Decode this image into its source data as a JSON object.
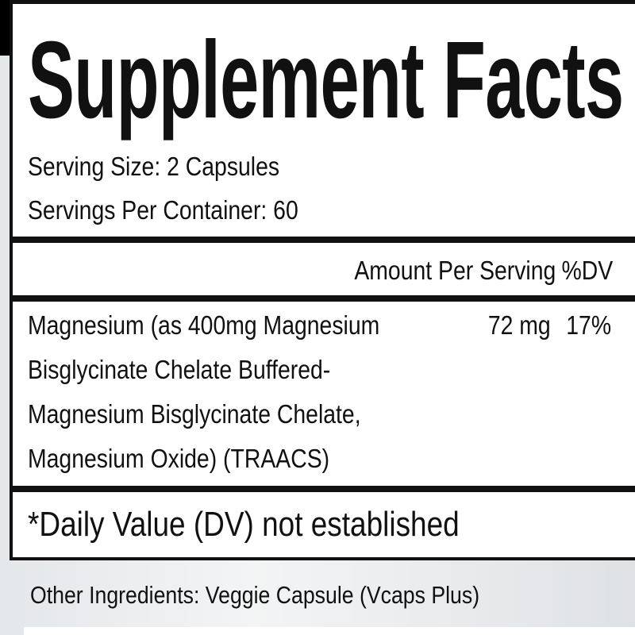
{
  "label": {
    "title": "Supplement Facts",
    "serving_size": "Serving Size: 2 Capsules",
    "servings_per_container": "Servings Per Container: 60",
    "header": {
      "amount": "Amount Per Serving",
      "dv": "%DV"
    },
    "ingredients": [
      {
        "lines": [
          "Magnesium (as 400mg Magnesium",
          "Bisglycinate Chelate Buffered-",
          "Magnesium Bisglycinate Chelate,",
          "Magnesium Oxide) (TRAACS)"
        ],
        "amount": "72 mg",
        "dv": "17%"
      }
    ],
    "footnote": "*Daily Value (DV) not established"
  },
  "other_ingredients": "Other Ingredients: Veggie Capsule (Vcaps Plus)"
}
